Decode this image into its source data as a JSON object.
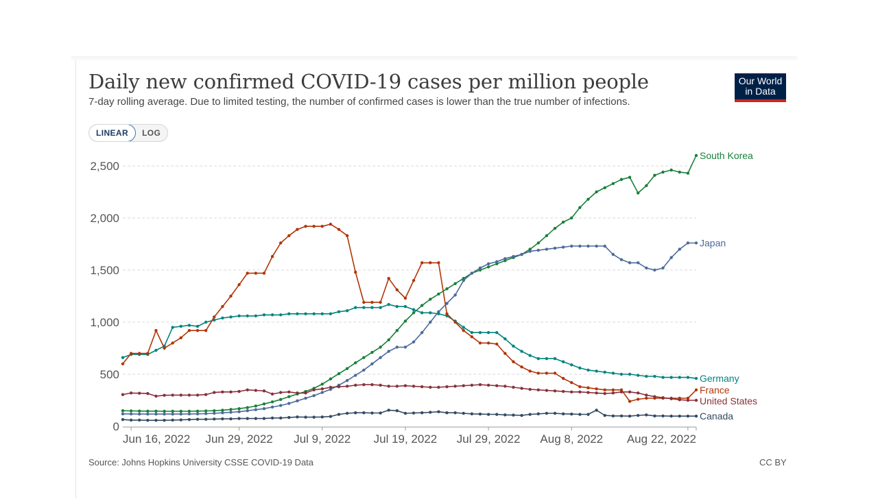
{
  "header": {
    "title": "Daily new confirmed COVID-19 cases per million people",
    "subtitle": "7-day rolling average. Due to limited testing, the number of confirmed cases is lower than the true number of infections.",
    "logo_line1": "Our World",
    "logo_line2": "in Data"
  },
  "controls": {
    "linear_label": "LINEAR",
    "log_label": "LOG",
    "active": "LINEAR"
  },
  "footer": {
    "source": "Source: Johns Hopkins University CSSE COVID-19 Data",
    "license": "CC BY"
  },
  "chart_data": {
    "type": "line",
    "title": "Daily new confirmed COVID-19 cases per million people",
    "subtitle": "7-day rolling average. Due to limited testing, the number of confirmed cases is lower than the true number of infections.",
    "scale": "linear",
    "ylim": [
      0,
      2500
    ],
    "yticks": [
      0,
      500,
      1000,
      1500,
      2000,
      2500
    ],
    "ytick_labels": [
      "0",
      "500",
      "1,000",
      "1,500",
      "2,000",
      "2,500"
    ],
    "xticks": [
      "Jun 16, 2022",
      "Jun 29, 2022",
      "Jul 9, 2022",
      "Jul 19, 2022",
      "Jul 29, 2022",
      "Aug 8, 2022",
      "Aug 22, 2022"
    ],
    "xtick_days": [
      1,
      14,
      24,
      34,
      44,
      54,
      68
    ],
    "x_start": "Jun 15, 2022",
    "x_end": "Aug 22, 2022",
    "grid": true,
    "legend": "end-of-line labels",
    "series": [
      {
        "name": "South Korea",
        "color": "#18803a",
        "values": [
          150,
          148,
          147,
          146,
          146,
          145,
          145,
          145,
          145,
          146,
          148,
          150,
          155,
          162,
          170,
          180,
          195,
          215,
          235,
          258,
          285,
          310,
          335,
          365,
          405,
          455,
          505,
          555,
          610,
          660,
          710,
          760,
          830,
          920,
          1010,
          1090,
          1160,
          1220,
          1270,
          1320,
          1370,
          1420,
          1470,
          1500,
          1530,
          1560,
          1590,
          1620,
          1650,
          1700,
          1760,
          1830,
          1900,
          1960,
          2000,
          2100,
          2180,
          2250,
          2290,
          2330,
          2370,
          2390,
          2240,
          2310,
          2410,
          2440,
          2460,
          2440,
          2430,
          2600
        ]
      },
      {
        "name": "Japan",
        "color": "#4c6a9c",
        "values": [
          120,
          119,
          118,
          118,
          118,
          118,
          118,
          118,
          119,
          120,
          122,
          125,
          130,
          135,
          140,
          150,
          160,
          170,
          185,
          200,
          220,
          245,
          270,
          295,
          325,
          355,
          395,
          440,
          490,
          540,
          600,
          660,
          720,
          760,
          760,
          810,
          900,
          1000,
          1100,
          1180,
          1260,
          1400,
          1470,
          1520,
          1560,
          1580,
          1610,
          1630,
          1650,
          1680,
          1690,
          1700,
          1710,
          1720,
          1730,
          1730,
          1730,
          1730,
          1730,
          1650,
          1600,
          1570,
          1570,
          1520,
          1500,
          1520,
          1620,
          1700,
          1760,
          1760
        ]
      },
      {
        "name": "Germany",
        "color": "#00847e",
        "values": [
          660,
          690,
          690,
          690,
          730,
          770,
          950,
          960,
          970,
          960,
          1000,
          1020,
          1040,
          1050,
          1060,
          1060,
          1060,
          1070,
          1070,
          1070,
          1080,
          1080,
          1080,
          1080,
          1080,
          1080,
          1100,
          1110,
          1140,
          1140,
          1140,
          1140,
          1170,
          1150,
          1150,
          1120,
          1090,
          1090,
          1080,
          1060,
          1010,
          950,
          900,
          900,
          900,
          900,
          840,
          770,
          720,
          680,
          650,
          650,
          650,
          620,
          590,
          560,
          540,
          530,
          520,
          510,
          500,
          500,
          490,
          480,
          480,
          470,
          470,
          470,
          470,
          460
        ]
      },
      {
        "name": "France",
        "color": "#b13507",
        "values": [
          600,
          700,
          700,
          700,
          920,
          750,
          800,
          850,
          920,
          920,
          920,
          1050,
          1150,
          1250,
          1360,
          1470,
          1470,
          1470,
          1630,
          1760,
          1830,
          1890,
          1920,
          1920,
          1920,
          1940,
          1890,
          1830,
          1480,
          1190,
          1190,
          1190,
          1420,
          1310,
          1230,
          1400,
          1570,
          1570,
          1570,
          1080,
          1000,
          920,
          860,
          800,
          800,
          790,
          700,
          620,
          570,
          530,
          510,
          510,
          510,
          460,
          420,
          380,
          370,
          360,
          350,
          350,
          350,
          240,
          260,
          270,
          270,
          270,
          270,
          270,
          270,
          350
        ]
      },
      {
        "name": "United States",
        "color": "#883039",
        "values": [
          305,
          320,
          318,
          315,
          290,
          298,
          300,
          300,
          300,
          300,
          305,
          325,
          330,
          330,
          335,
          350,
          345,
          340,
          310,
          325,
          330,
          320,
          320,
          350,
          360,
          375,
          380,
          385,
          395,
          400,
          400,
          395,
          385,
          385,
          390,
          385,
          380,
          375,
          375,
          380,
          385,
          390,
          395,
          400,
          395,
          390,
          385,
          375,
          365,
          355,
          350,
          345,
          340,
          335,
          330,
          330,
          325,
          320,
          315,
          320,
          330,
          330,
          320,
          300,
          285,
          275,
          265,
          255,
          250,
          250
        ]
      },
      {
        "name": "Canada",
        "color": "#334a63",
        "values": [
          65,
          60,
          60,
          58,
          58,
          58,
          60,
          62,
          65,
          68,
          68,
          70,
          72,
          72,
          75,
          75,
          75,
          75,
          80,
          80,
          85,
          90,
          88,
          88,
          90,
          95,
          115,
          125,
          130,
          130,
          128,
          128,
          155,
          150,
          125,
          128,
          130,
          135,
          140,
          130,
          130,
          125,
          120,
          118,
          115,
          115,
          110,
          108,
          105,
          115,
          120,
          125,
          125,
          120,
          118,
          115,
          115,
          155,
          105,
          100,
          100,
          98,
          105,
          110,
          100,
          100,
          98,
          98,
          98,
          98
        ]
      }
    ]
  }
}
